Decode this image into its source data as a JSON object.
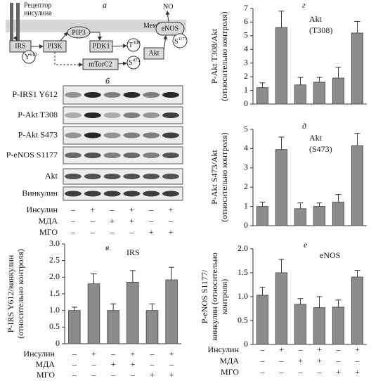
{
  "panel_a": {
    "letter": "а",
    "receptor": [
      "Рецептор",
      "инсулина"
    ],
    "membrane": "Мембрана",
    "irs": "IRS",
    "y612": {
      "base": "Y",
      "sup": "612"
    },
    "pi3k": "PI3K",
    "pip3": "PIP3",
    "pdk1": "PDK1",
    "t308": {
      "base": "T",
      "sup": "308"
    },
    "s473": {
      "base": "S",
      "sup": "473"
    },
    "akt": "Akt",
    "mtorc2": "mTorC2",
    "enos": "eNOS",
    "s1177": {
      "base": "S",
      "sup": "1177"
    },
    "no": "NO"
  },
  "panel_b": {
    "letter": "б",
    "rows": [
      "P-IRS1 Y612",
      "P-Akt T308",
      "P-Akt S473",
      "P-eNOS S1177",
      "Akt",
      "Винкулин"
    ]
  },
  "treatments": [
    {
      "name": "Инсулин",
      "signs": [
        "–",
        "+",
        "–",
        "+",
        "–",
        "+"
      ]
    },
    {
      "name": "МДА",
      "signs": [
        "–",
        "–",
        "+",
        "+",
        "–",
        "–"
      ]
    },
    {
      "name": "МГО",
      "signs": [
        "–",
        "–",
        "–",
        "–",
        "+",
        "+"
      ]
    }
  ],
  "chart_data": [
    {
      "type": "bar",
      "letter": "в",
      "annotation": [
        "IRS"
      ],
      "ylabel": [
        "P-IRS Y612/винкулин",
        "(относительно контроля)"
      ],
      "values": [
        1.0,
        1.8,
        1.0,
        1.85,
        1.0,
        1.92
      ],
      "errors": [
        0.1,
        0.3,
        0.2,
        0.35,
        0.2,
        0.38
      ],
      "color": "#8c8c8c",
      "ylim": [
        0,
        3.0
      ],
      "yticks": [
        0,
        {
          "value": 0.5,
          "label": "0.5"
        },
        {
          "value": 1.0,
          "label": "1.0"
        },
        {
          "value": 1.5,
          "label": "1.5"
        },
        {
          "value": 2.0,
          "label": "2.0"
        },
        {
          "value": 2.5,
          "label": "2.5"
        },
        {
          "value": 3.0,
          "label": "3.0"
        }
      ]
    },
    {
      "type": "bar",
      "letter": "г",
      "annotation": [
        "Akt",
        "(T308)"
      ],
      "ylabel": [
        "P-Akt T308/Akt",
        "(относительно контроля)"
      ],
      "values": [
        1.2,
        5.6,
        1.4,
        1.6,
        1.9,
        5.2
      ],
      "errors": [
        0.35,
        1.2,
        0.55,
        0.35,
        0.8,
        0.85
      ],
      "color": "#8c8c8c",
      "ylim": [
        0,
        7
      ],
      "yticks": [
        0,
        1,
        2,
        3,
        4,
        5,
        6,
        7
      ]
    },
    {
      "type": "bar",
      "letter": "д",
      "annotation": [
        "Akt",
        "(S473)"
      ],
      "ylabel": [
        "P-Akt S473/Akt",
        "(относительно контроля)"
      ],
      "values": [
        1.0,
        3.95,
        0.88,
        1.0,
        1.22,
        4.15
      ],
      "errors": [
        0.22,
        0.65,
        0.3,
        0.18,
        0.4,
        0.65
      ],
      "color": "#8c8c8c",
      "ylim": [
        0,
        5
      ],
      "yticks": [
        0,
        1,
        2,
        3,
        4,
        5
      ]
    },
    {
      "type": "bar",
      "letter": "е",
      "annotation": [
        "eNOS"
      ],
      "ylabel": [
        "P-eNOS S1177/",
        "винкулин (относительно",
        "контроля)"
      ],
      "values": [
        1.03,
        1.5,
        0.84,
        0.77,
        0.78,
        1.41
      ],
      "errors": [
        0.17,
        0.28,
        0.12,
        0.23,
        0.15,
        0.14
      ],
      "color": "#8c8c8c",
      "ylim": [
        0,
        2.0
      ],
      "yticks": [
        0,
        {
          "value": 0.5,
          "label": "0.5"
        },
        {
          "value": 1.0,
          "label": "1.0"
        },
        {
          "value": 1.5,
          "label": "1.5"
        },
        {
          "value": 2.0,
          "label": "2.0"
        }
      ]
    }
  ]
}
